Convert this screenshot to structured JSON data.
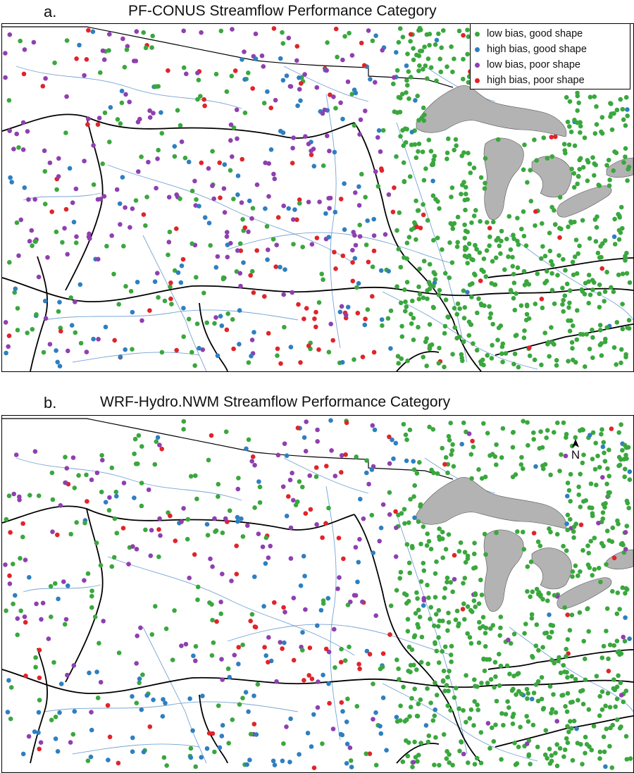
{
  "panels": [
    {
      "letter": "a.",
      "title": "PF-CONUS Streamflow Performance Category"
    },
    {
      "letter": "b.",
      "title": "WRF-Hydro.NWM Streamflow Performance Category"
    }
  ],
  "legend": [
    {
      "label": "low bias, good shape",
      "color": "#3aa73e"
    },
    {
      "label": "high bias, good shape",
      "color": "#2e7fc0"
    },
    {
      "label": "low bias, poor shape",
      "color": "#8f3fb0"
    },
    {
      "label": "high bias, poor shape",
      "color": "#e0242a"
    }
  ],
  "north_arrow": {
    "label": "N",
    "icon": "north-arrow-icon"
  },
  "colors": {
    "lake": "#b3b3b3",
    "river": "#4a86c5",
    "boundary": "#000000",
    "border": "#000000"
  }
}
